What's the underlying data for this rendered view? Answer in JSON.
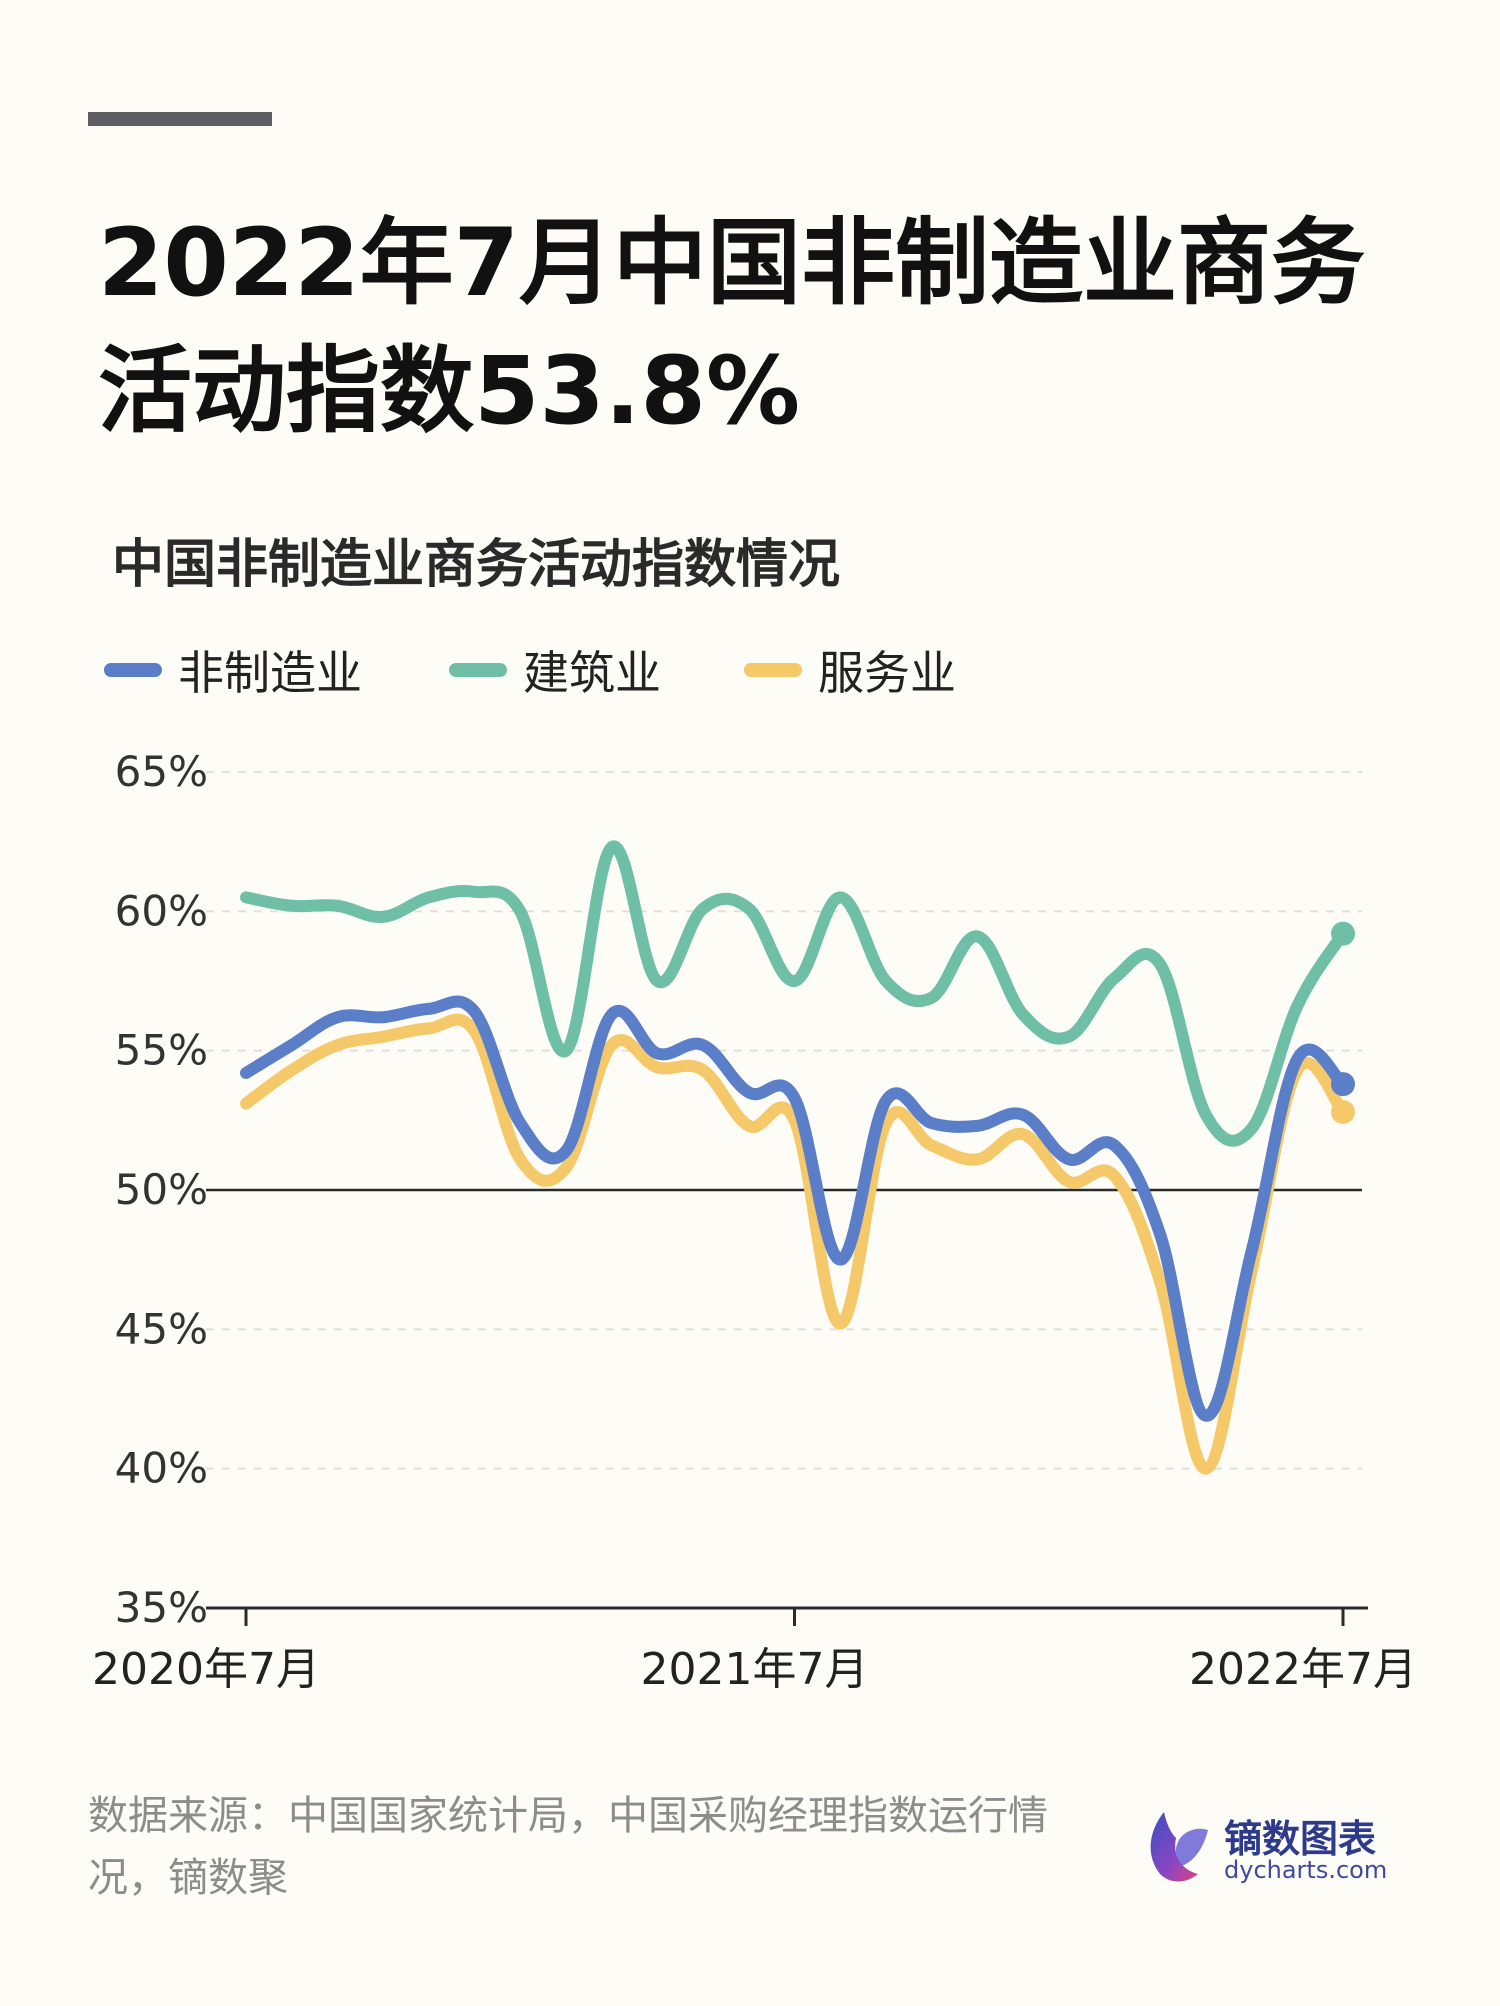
{
  "title": "2022年7月中国非制造业商务活动指数53.8%",
  "source": "数据来源：中国国家统计局，中国采购经理指数运行情况，镝数聚",
  "logo": {
    "name": "镝数图表",
    "url": "dycharts.com"
  },
  "chart_data": {
    "type": "line",
    "title": "中国非制造业商务活动指数情况",
    "ylim": [
      35,
      65
    ],
    "yticks": [
      65,
      60,
      55,
      50,
      45,
      40,
      35
    ],
    "ytick_labels": [
      "65%",
      "60%",
      "55%",
      "50%",
      "45%",
      "40%",
      "35%"
    ],
    "reference_line": 50,
    "x_labels": [
      {
        "index": 0,
        "label": "2020年7月"
      },
      {
        "index": 12,
        "label": "2021年7月"
      },
      {
        "index": 24,
        "label": "2022年7月"
      }
    ],
    "legend_position": "top-left",
    "series": [
      {
        "name": "非制造业",
        "color": "#5b7ec8",
        "values": [
          54.2,
          55.2,
          56.2,
          56.2,
          56.5,
          56.4,
          52.4,
          51.4,
          56.3,
          54.9,
          55.2,
          53.5,
          53.3,
          47.5,
          53.2,
          52.4,
          52.3,
          52.7,
          51.1,
          51.6,
          48.4,
          41.9,
          47.8,
          54.7,
          53.8
        ]
      },
      {
        "name": "建筑业",
        "color": "#6ebfa6",
        "values": [
          60.5,
          60.2,
          60.2,
          59.8,
          60.5,
          60.7,
          60.0,
          55.0,
          62.3,
          57.5,
          60.1,
          60.1,
          57.5,
          60.5,
          57.5,
          56.9,
          59.1,
          56.3,
          55.5,
          57.6,
          58.1,
          52.7,
          52.2,
          56.6,
          59.2
        ]
      },
      {
        "name": "服务业",
        "color": "#f5c96a",
        "values": [
          53.1,
          54.3,
          55.2,
          55.5,
          55.8,
          55.7,
          51.1,
          50.8,
          55.2,
          54.4,
          54.3,
          52.3,
          52.5,
          45.2,
          52.4,
          51.6,
          51.1,
          52.0,
          50.3,
          50.5,
          46.7,
          40.0,
          47.1,
          54.3,
          52.8
        ]
      }
    ]
  }
}
